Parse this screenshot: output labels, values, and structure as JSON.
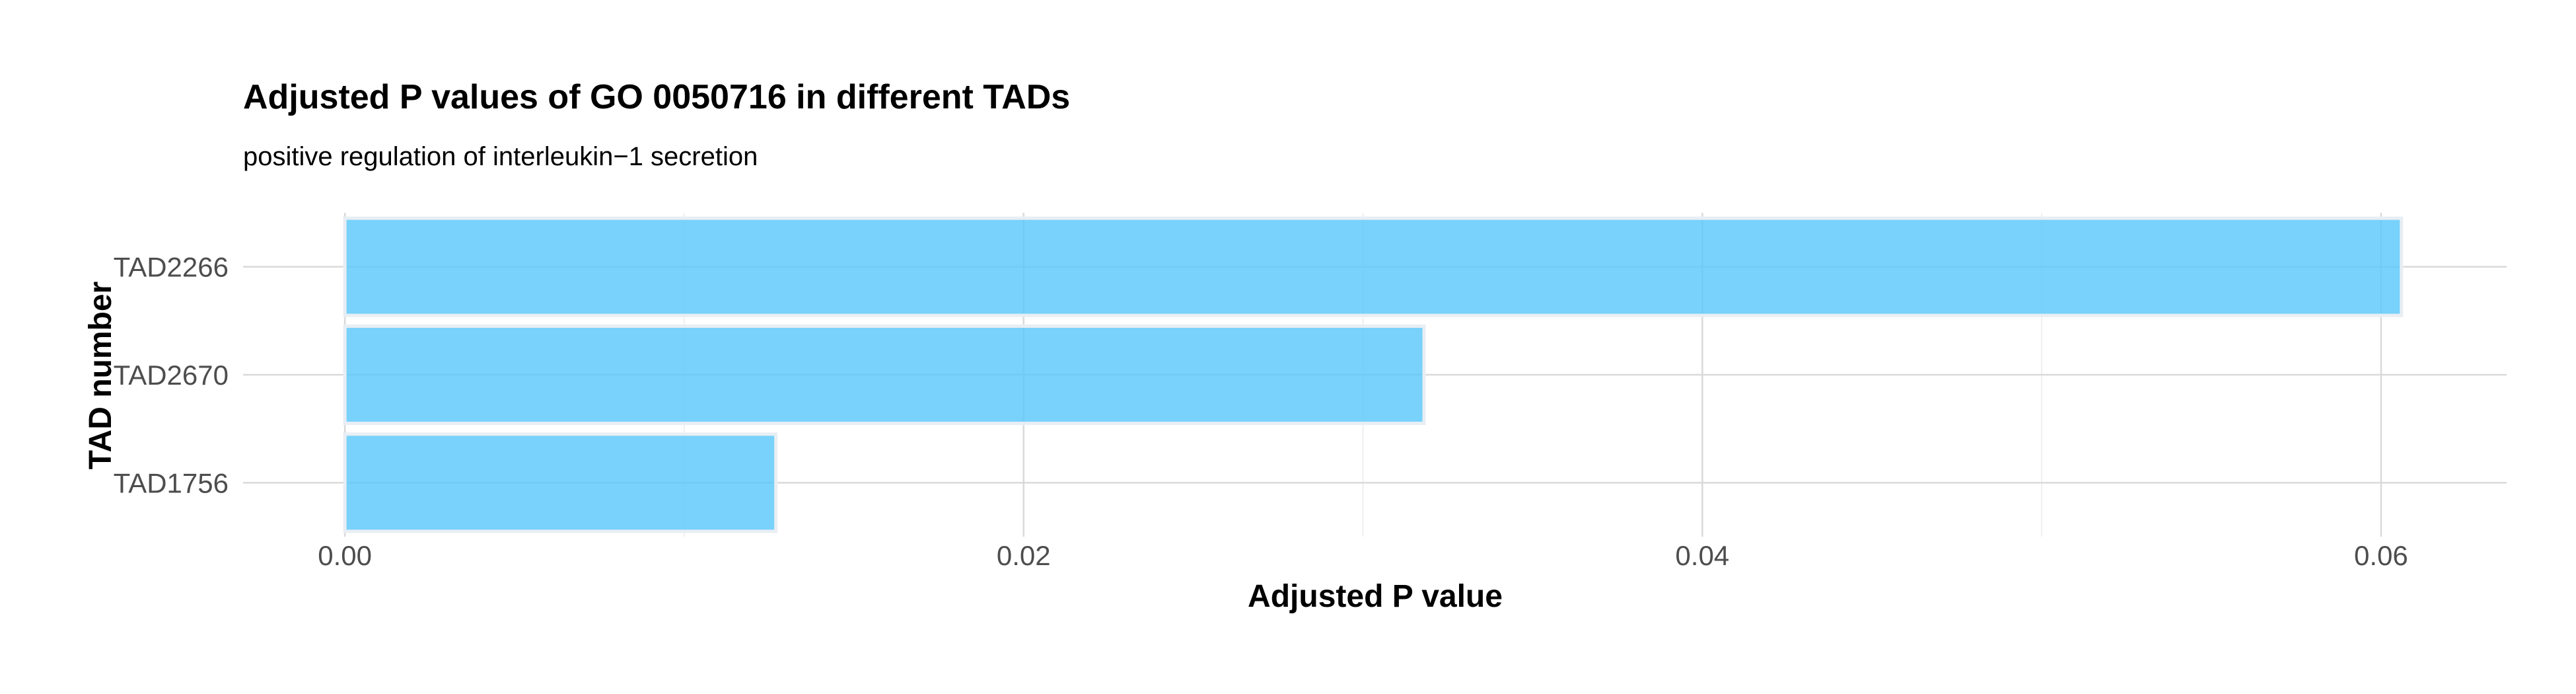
{
  "chart_data": {
    "type": "bar",
    "orientation": "horizontal",
    "title": "Adjusted P values of GO 0050716 in different TADs",
    "subtitle": "positive regulation of interleukin−1 secretion",
    "xlabel": "Adjusted P value",
    "ylabel": "TAD number",
    "categories": [
      "TAD2266",
      "TAD2670",
      "TAD1756"
    ],
    "values": [
      0.0606,
      0.0318,
      0.0127
    ],
    "xlim": [
      -0.003,
      0.0637
    ],
    "xticks": [
      0.0,
      0.02,
      0.04,
      0.06
    ],
    "xtick_labels": [
      "0.00",
      "0.02",
      "0.04",
      "0.06"
    ],
    "bar_color": "#5ac8fa",
    "bar_outline": "#e8eef3",
    "grid": true,
    "legend": "none"
  }
}
